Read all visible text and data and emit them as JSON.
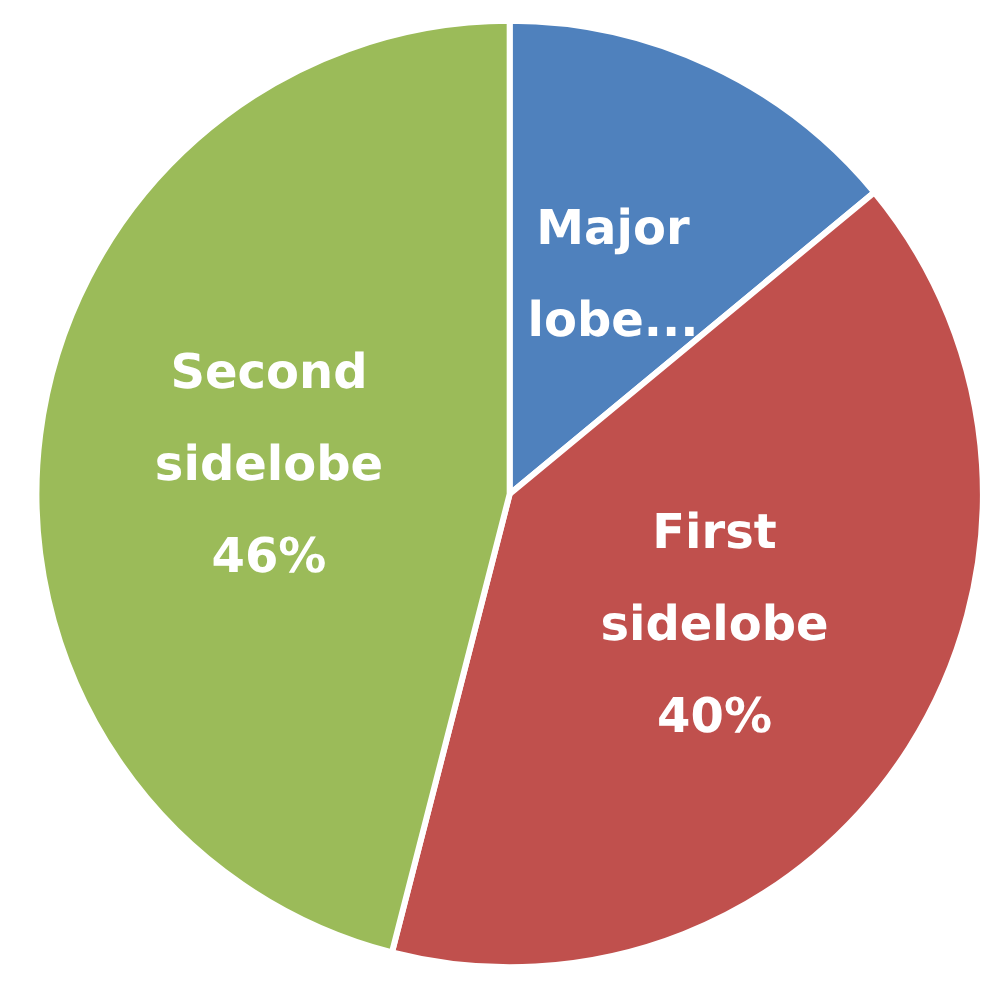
{
  "chart_data": {
    "type": "pie",
    "categories": [
      "Major lobe...",
      "First sidelobe",
      "Second sidelobe"
    ],
    "values": [
      14,
      40,
      46
    ],
    "colors": [
      "#4f81bd",
      "#c0504d",
      "#9bbb59"
    ],
    "value_labels": [
      null,
      "40%",
      "46%"
    ],
    "legend": false
  }
}
